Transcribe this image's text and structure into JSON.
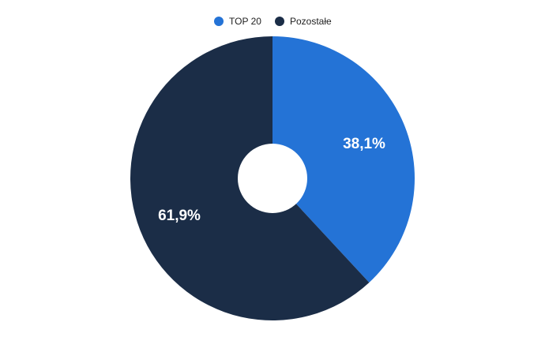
{
  "chart_data": {
    "type": "pie",
    "variant": "donut",
    "categories": [
      "TOP 20",
      "Pozostałe"
    ],
    "values": [
      38.1,
      61.9
    ],
    "labels": [
      "38,1%",
      "61,9%"
    ],
    "colors": [
      "#2473d6",
      "#1b2d47"
    ],
    "legend_position": "top-center",
    "title": "",
    "xlabel": "",
    "ylabel": ""
  }
}
